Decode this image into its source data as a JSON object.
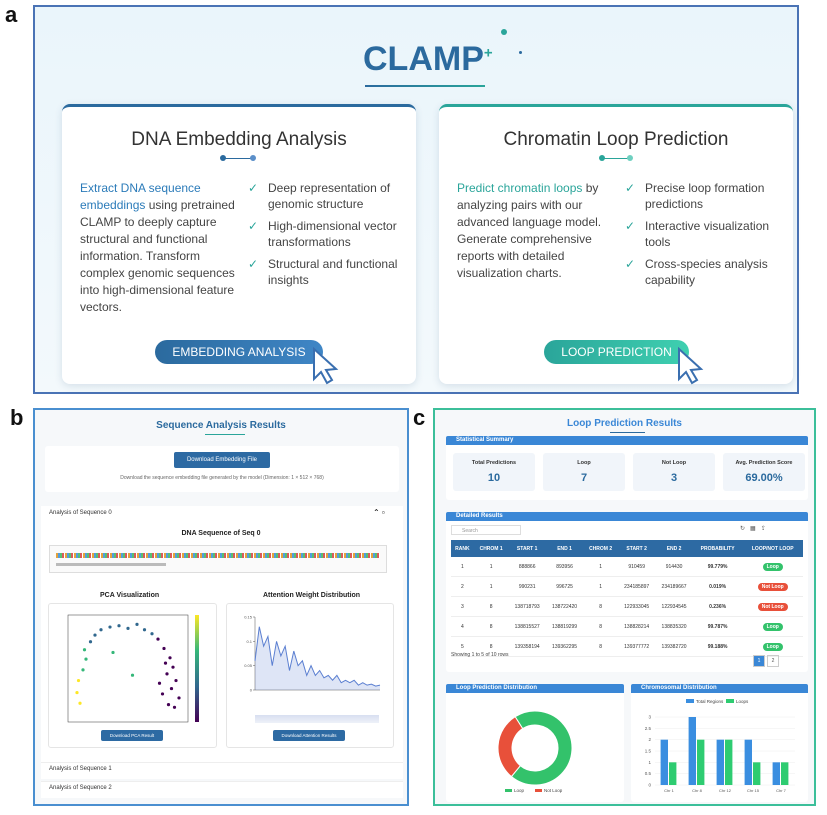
{
  "panel_labels": [
    "a",
    "b",
    "c"
  ],
  "landing": {
    "brand": "CLAMP",
    "brand_mark": "+",
    "cards": [
      {
        "title": "DNA Embedding Analysis",
        "lead": "Extract DNA sequence embeddings",
        "body": " using pretrained CLAMP to deeply capture structural and functional information. Transform complex genomic sequences into high-dimensional feature vectors.",
        "features": [
          "Deep representation of genomic structure",
          "High-dimensional vector transformations",
          "Structural and functional insights"
        ],
        "button": "EMBEDDING ANALYSIS"
      },
      {
        "title": "Chromatin Loop Prediction",
        "lead": "Predict chromatin loops",
        "body": " by analyzing pairs with our advanced language model. Generate comprehensive reports with detailed visualization charts.",
        "features": [
          "Precise loop formation predictions",
          "Interactive visualization tools",
          "Cross-species analysis capability"
        ],
        "button": "LOOP PREDICTION"
      }
    ]
  },
  "sequence_results": {
    "title": "Sequence Analysis Results",
    "download_button": "Download Embedding File",
    "download_note": "Download the sequence embedding file generated by the model (Dimension: 1 × 512 × 768)",
    "sections": [
      "Analysis of Sequence 0",
      "Analysis of Sequence 1",
      "Analysis of Sequence 2"
    ],
    "sequence_title": "DNA Sequence of Seq 0",
    "pca_title": "PCA Visualization",
    "attention_title": "Attention Weight Distribution",
    "pca_button": "Download PCA Result",
    "attention_button": "Download Attention Results"
  },
  "loop_results": {
    "title": "Loop Prediction Results",
    "summary_title": "Statistical Summary",
    "stats": [
      {
        "label": "Total Predictions",
        "value": 10
      },
      {
        "label": "Loop",
        "value": 7
      },
      {
        "label": "Not Loop",
        "value": 3
      },
      {
        "label": "Avg. Prediction Score",
        "value": "69.00%"
      }
    ],
    "details_title": "Detailed Results",
    "search_placeholder": "Search",
    "columns": [
      "RANK",
      "CHROM 1",
      "START 1",
      "END 1",
      "CHROM 2",
      "START 2",
      "END 2",
      "PROBABILITY",
      "LOOP/NOT LOOP"
    ],
    "rows": [
      [
        1,
        1,
        888866,
        893956,
        1,
        910459,
        914430,
        "99.779%",
        "Loop"
      ],
      [
        2,
        1,
        990231,
        996725,
        1,
        234185897,
        234189667,
        "0.019%",
        "Not Loop"
      ],
      [
        3,
        8,
        138718793,
        138722420,
        8,
        122933045,
        122934545,
        "0.236%",
        "Not Loop"
      ],
      [
        4,
        8,
        138815527,
        138819299,
        8,
        138828214,
        138835320,
        "99.787%",
        "Loop"
      ],
      [
        5,
        8,
        139358194,
        139362295,
        8,
        139377772,
        139382720,
        "99.188%",
        "Loop"
      ]
    ],
    "footer": "Showing 1 to 5 of 10 rows",
    "pages": [
      1,
      2
    ],
    "distribution_title": "Loop Prediction Distribution",
    "chromosomal_title": "Chromosomal Distribution"
  },
  "chart_data": [
    {
      "type": "pie",
      "categories": [
        "Loop",
        "Not Loop"
      ],
      "values": [
        7,
        3
      ],
      "colors": [
        "#33c26b",
        "#e8503a"
      ]
    },
    {
      "type": "bar",
      "categories": [
        "Chr 1",
        "Chr 8",
        "Chr 12",
        "Chr 15",
        "Chr 7"
      ],
      "series": [
        {
          "name": "Total Regions",
          "color": "#3a8ee0",
          "values": [
            2,
            3,
            2,
            2,
            1
          ]
        },
        {
          "name": "Loops",
          "color": "#2ecc71",
          "values": [
            1,
            2,
            2,
            1,
            1
          ]
        }
      ],
      "ylim": [
        0,
        3
      ],
      "yticks": [
        0,
        0.5,
        1,
        1.5,
        2,
        2.5,
        3
      ]
    },
    {
      "type": "scatter",
      "x": [
        -3.2,
        -3.4,
        -3.3,
        -3.0,
        -2.8,
        -2.9,
        -2.5,
        -2.2,
        -1.8,
        -1.2,
        -0.6,
        0.0,
        0.6,
        1.1,
        1.6,
        2.0,
        2.4,
        2.8,
        3.0,
        2.6,
        3.2,
        2.9,
        2.3,
        3.4,
        2.7,
        2.1,
        3.1,
        2.5,
        -1.0,
        0.3
      ],
      "y": [
        -2.6,
        -1.8,
        -0.9,
        -0.1,
        0.7,
        1.4,
        2.0,
        2.5,
        2.9,
        3.1,
        3.2,
        3.0,
        3.3,
        2.9,
        2.6,
        2.2,
        1.5,
        0.8,
        0.1,
        -0.4,
        -0.9,
        -1.5,
        -1.9,
        -2.2,
        -2.7,
        -1.1,
        -2.9,
        0.4,
        1.2,
        -0.5
      ],
      "values": [
        0.95,
        0.9,
        0.85,
        0.75,
        0.65,
        0.55,
        0.45,
        0.4,
        0.35,
        0.35,
        0.3,
        0.3,
        0.25,
        0.2,
        0.2,
        0.15,
        0.15,
        0.1,
        0.1,
        0.1,
        0.05,
        0.05,
        0.05,
        0.05,
        0.05,
        0.1,
        0.05,
        0.15,
        0.6,
        0.5
      ],
      "colorscale": [
        "#440154",
        "#31688e",
        "#35b779",
        "#fde725"
      ],
      "clim": [
        0,
        1
      ],
      "xlim": [
        -4,
        4
      ],
      "ylim": [
        -4,
        4
      ]
    },
    {
      "type": "line",
      "color": "#5b7fd1",
      "x": [
        0,
        1,
        2,
        3,
        4,
        5,
        6,
        7,
        8,
        9,
        10,
        11,
        12,
        13,
        14,
        15,
        16,
        17,
        18,
        19,
        20,
        21,
        22,
        23,
        24,
        25,
        26,
        27,
        28,
        29
      ],
      "values": [
        0.06,
        0.13,
        0.09,
        0.11,
        0.05,
        0.1,
        0.07,
        0.09,
        0.04,
        0.08,
        0.05,
        0.06,
        0.03,
        0.05,
        0.03,
        0.04,
        0.025,
        0.03,
        0.02,
        0.03,
        0.015,
        0.02,
        0.015,
        0.02,
        0.01,
        0.015,
        0.01,
        0.012,
        0.008,
        0.01
      ],
      "xlim": [
        0,
        29
      ],
      "ylim": [
        0,
        0.15
      ],
      "yticks": [
        0,
        0.05,
        0.1,
        0.15
      ]
    }
  ]
}
